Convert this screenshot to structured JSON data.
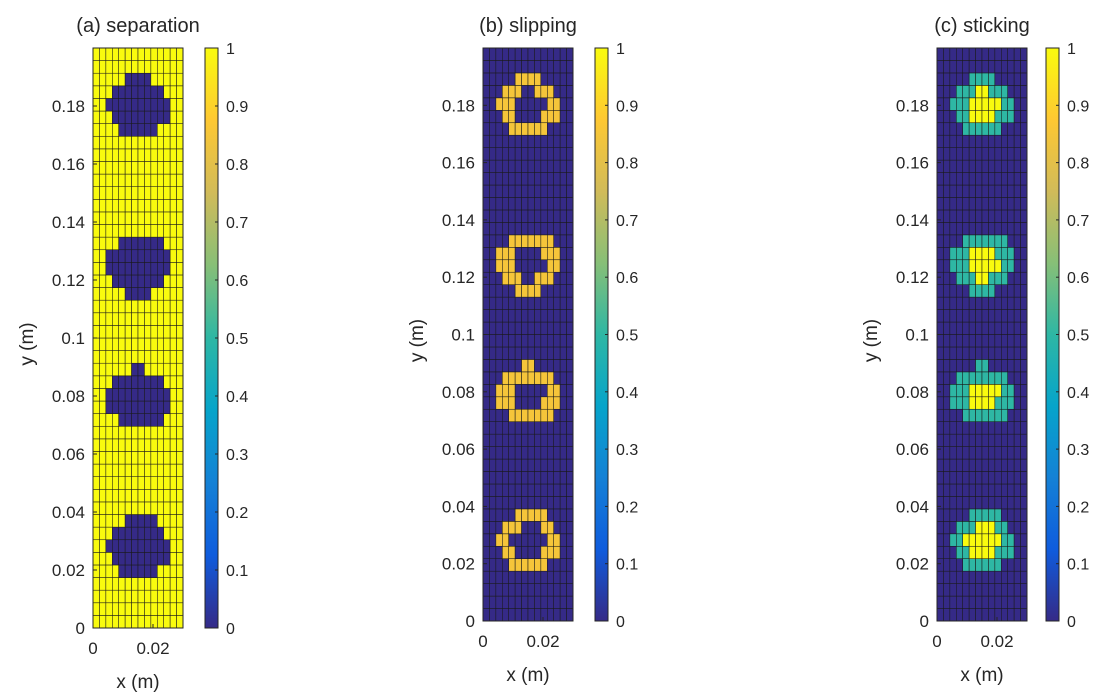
{
  "chart_data": [
    {
      "type": "heatmap",
      "title": "(a)  separation",
      "xlabel": "x (m)",
      "ylabel": "y (m)",
      "xlim": [
        0,
        0.03
      ],
      "ylim": [
        0,
        0.2
      ],
      "xticks": [
        "0",
        "0.02"
      ],
      "yticks": [
        "0",
        "0.02",
        "0.04",
        "0.06",
        "0.08",
        "0.1",
        "0.12",
        "0.14",
        "0.16",
        "0.18"
      ],
      "grid_cells": [
        14,
        46
      ],
      "circle_centers_xy_m": [
        [
          0.0153,
          0.1795
        ],
        [
          0.0153,
          0.125
        ],
        [
          0.0153,
          0.0788
        ],
        [
          0.0153,
          0.0278
        ]
      ],
      "circle_radius_m": 0.0105,
      "value_inside_circle": 0,
      "value_ring": 0,
      "value_outside": 1,
      "colorbar": {
        "range": [
          0,
          1
        ],
        "ticks": [
          "0",
          "0.1",
          "0.2",
          "0.3",
          "0.4",
          "0.5",
          "0.6",
          "0.7",
          "0.8",
          "0.9",
          "1"
        ],
        "colormap": "parula"
      }
    },
    {
      "type": "heatmap",
      "title": "(b)  slipping",
      "xlabel": "x (m)",
      "ylabel": "y (m)",
      "xlim": [
        0,
        0.03
      ],
      "ylim": [
        0,
        0.2
      ],
      "xticks": [
        "0",
        "0.02"
      ],
      "yticks": [
        "0",
        "0.02",
        "0.04",
        "0.06",
        "0.08",
        "0.1",
        "0.12",
        "0.14",
        "0.16",
        "0.18"
      ],
      "grid_cells": [
        14,
        46
      ],
      "circle_centers_xy_m": [
        [
          0.0153,
          0.1795
        ],
        [
          0.0153,
          0.125
        ],
        [
          0.0153,
          0.0788
        ],
        [
          0.0153,
          0.0278
        ]
      ],
      "circle_radius_m": 0.0105,
      "value_inside_circle": 0,
      "value_ring": 0.85,
      "value_outside": 0,
      "colorbar": {
        "range": [
          0,
          1
        ],
        "ticks": [
          "0",
          "0.1",
          "0.2",
          "0.3",
          "0.4",
          "0.5",
          "0.6",
          "0.7",
          "0.8",
          "0.9",
          "1"
        ],
        "colormap": "parula"
      }
    },
    {
      "type": "heatmap",
      "title": "(c)  sticking",
      "xlabel": "x (m)",
      "ylabel": "y (m)",
      "xlim": [
        0,
        0.03
      ],
      "ylim": [
        0,
        0.2
      ],
      "xticks": [
        "0",
        "0.02"
      ],
      "yticks": [
        "0",
        "0.02",
        "0.04",
        "0.06",
        "0.08",
        "0.1",
        "0.12",
        "0.14",
        "0.16",
        "0.18"
      ],
      "grid_cells": [
        14,
        46
      ],
      "circle_centers_xy_m": [
        [
          0.0153,
          0.1795
        ],
        [
          0.0153,
          0.125
        ],
        [
          0.0153,
          0.0788
        ],
        [
          0.0153,
          0.0278
        ]
      ],
      "circle_radius_m": 0.0105,
      "value_inside_circle": 1,
      "value_ring": 0.5,
      "value_outside": 0,
      "colorbar": {
        "range": [
          0,
          1
        ],
        "ticks": [
          "0",
          "0.1",
          "0.2",
          "0.3",
          "0.4",
          "0.5",
          "0.6",
          "0.7",
          "0.8",
          "0.9",
          "1"
        ],
        "colormap": "parula"
      }
    }
  ]
}
